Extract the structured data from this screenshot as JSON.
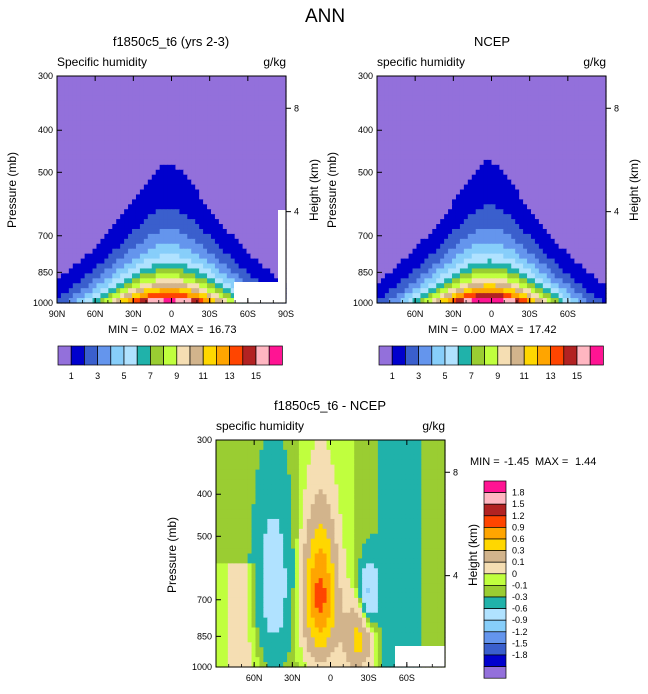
{
  "figure": {
    "title": "ANN"
  },
  "colors": {
    "field_palette": [
      "#9370DB",
      "#0000CD",
      "#3A5FCD",
      "#6495ED",
      "#87CEFA",
      "#B0E2FF",
      "#20B2AA",
      "#9ACD32",
      "#C0FF3E",
      "#F5DEB3",
      "#D2B48C",
      "#FFD700",
      "#FFA500",
      "#FF4500",
      "#B22222",
      "#FFB6C1",
      "#FF1493"
    ],
    "diff_palette": [
      "#9370DB",
      "#0000CD",
      "#3A5FCD",
      "#6495ED",
      "#87CEFA",
      "#B0E2FF",
      "#20B2AA",
      "#9ACD32",
      "#C0FF3E",
      "#F5DEB3",
      "#D2B48C",
      "#FFD700",
      "#FFA500",
      "#FF4500",
      "#B22222",
      "#FFB6C1",
      "#FF1493"
    ]
  },
  "chart_data": [
    {
      "type": "contour",
      "id": "panel-model",
      "title": "f1850c5_t6 (yrs 2-3)",
      "left_label": "Specific humidity",
      "right_label": "g/kg",
      "ylabel": "Pressure (mb)",
      "ylabel_right": "Height (km)",
      "x_ticks": [
        "90N",
        "60N",
        "30N",
        "0",
        "30S",
        "60S",
        "90S"
      ],
      "x_tick_values": [
        90,
        60,
        30,
        0,
        -30,
        -60,
        -90
      ],
      "xlim": [
        90,
        -90
      ],
      "y_ticks": [
        "300",
        "400",
        "500",
        "700",
        "850",
        "1000"
      ],
      "y_tick_values": [
        300,
        400,
        500,
        700,
        850,
        1000
      ],
      "ylim": [
        1000,
        300
      ],
      "height_ticks": [
        "8",
        "4"
      ],
      "min_label": "MIN =",
      "min_value": "0.02",
      "max_label": "MAX =",
      "max_value": "16.73",
      "contour_levels": [
        1,
        2,
        3,
        4,
        5,
        6,
        7,
        8,
        9,
        10,
        11,
        12,
        13,
        14,
        15,
        16
      ],
      "field": {
        "surface_max": 16.73,
        "center_lat": 2,
        "half_width_surface": 88,
        "ridge_top_mb": 390
      }
    },
    {
      "type": "contour",
      "id": "panel-obs",
      "title": "NCEP",
      "left_label": "specific humidity",
      "right_label": "g/kg",
      "ylabel": "Pressure (mb)",
      "ylabel_right": "Height (km)",
      "x_ticks": [
        "60N",
        "30N",
        "0",
        "30S",
        "60S"
      ],
      "x_tick_values": [
        60,
        30,
        0,
        -30,
        -60
      ],
      "xlim": [
        90,
        -90
      ],
      "y_ticks": [
        "300",
        "400",
        "500",
        "700",
        "850",
        "1000"
      ],
      "y_tick_values": [
        300,
        400,
        500,
        700,
        850,
        1000
      ],
      "ylim": [
        1000,
        300
      ],
      "height_ticks": [
        "8",
        "4"
      ],
      "min_label": "MIN =",
      "min_value": "0.00",
      "max_label": "MAX =",
      "max_value": "17.42",
      "contour_levels": [
        1,
        2,
        3,
        4,
        5,
        6,
        7,
        8,
        9,
        10,
        11,
        12,
        13,
        14,
        15,
        16
      ],
      "field": {
        "surface_max": 17.42,
        "center_lat": 2,
        "half_width_surface": 85,
        "ridge_top_mb": 390
      }
    },
    {
      "type": "contour",
      "id": "panel-diff",
      "title": "f1850c5_t6 - NCEP",
      "left_label": "specific humidity",
      "right_label": "g/kg",
      "ylabel": "Pressure (mb)",
      "ylabel_right": "Height (km)",
      "x_ticks": [
        "60N",
        "30N",
        "0",
        "30S",
        "60S"
      ],
      "x_tick_values": [
        60,
        30,
        0,
        -30,
        -60
      ],
      "xlim": [
        90,
        -90
      ],
      "y_ticks": [
        "300",
        "400",
        "500",
        "700",
        "850",
        "1000"
      ],
      "y_tick_values": [
        300,
        400,
        500,
        700,
        850,
        1000
      ],
      "ylim": [
        1000,
        300
      ],
      "height_ticks": [
        "8",
        "4"
      ],
      "min_label": "MIN =",
      "min_value": "-1.45",
      "max_label": "MAX =",
      "max_value": "1.44",
      "contour_levels": [
        -1.8,
        -1.5,
        -1.2,
        -0.9,
        -0.6,
        -0.3,
        -0.1,
        0,
        0.1,
        0.3,
        0.6,
        0.9,
        1.2,
        1.5,
        1.8
      ]
    }
  ],
  "legends": {
    "field_labels": [
      "1",
      "3",
      "5",
      "7",
      "9",
      "11",
      "13",
      "15"
    ],
    "diff_labels": [
      "1.8",
      "1.5",
      "1.2",
      "0.9",
      "0.6",
      "0.3",
      "0.1",
      "0",
      "-0.1",
      "-0.3",
      "-0.6",
      "-0.9",
      "-1.2",
      "-1.5",
      "-1.8"
    ]
  }
}
